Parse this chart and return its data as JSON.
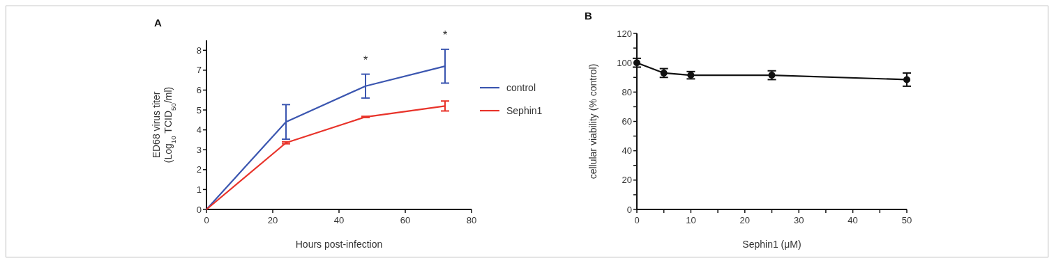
{
  "chart_data": [
    {
      "type": "line",
      "title": "A",
      "xlabel": "Hours post-infection",
      "ylabel": "ED68 virus titer\n(Log$_{10}$ TCID$_{50}$/ml)",
      "x": [
        0,
        24,
        48,
        72
      ],
      "xlim": [
        0,
        80
      ],
      "xticks": [
        0,
        20,
        40,
        60,
        80
      ],
      "ylim": [
        0,
        8.5
      ],
      "yticks": [
        0,
        1,
        2,
        3,
        4,
        5,
        6,
        7,
        8
      ],
      "series": [
        {
          "name": "control",
          "color": "#3b56b0",
          "values": [
            0,
            4.4,
            6.2,
            7.2
          ],
          "errors": [
            null,
            0.87,
            0.6,
            0.85
          ]
        },
        {
          "name": "Sephin1",
          "color": "#e8332a",
          "values": [
            0,
            3.35,
            4.65,
            5.2
          ],
          "errors": [
            null,
            0.05,
            0.03,
            0.25
          ]
        }
      ],
      "annotations": [
        {
          "text": "*",
          "x": 48,
          "y": 6.83
        },
        {
          "text": "*",
          "x": 72,
          "y": 8.08
        }
      ],
      "legend": "right",
      "marker": "none",
      "grid": false
    },
    {
      "type": "line",
      "title": "B",
      "xlabel": "Sephin1 (μM)",
      "ylabel": "cellular viability (% control)",
      "x": [
        0,
        5,
        10,
        25,
        50
      ],
      "xlim": [
        0,
        50
      ],
      "xticks": [
        0,
        {
          "value": 5,
          "label": null
        },
        10,
        {
          "value": 15,
          "label": null
        },
        20,
        {
          "value": 25,
          "label": null
        },
        30,
        {
          "value": 35,
          "label": null
        },
        40,
        {
          "value": 45,
          "label": null
        },
        50
      ],
      "ylim": [
        0,
        120
      ],
      "yticks": [
        0,
        {
          "value": 10,
          "label": null
        },
        20,
        {
          "value": 30,
          "label": null
        },
        40,
        {
          "value": 50,
          "label": null
        },
        60,
        {
          "value": 70,
          "label": null
        },
        80,
        {
          "value": 90,
          "label": null
        },
        100,
        {
          "value": 110,
          "label": null
        },
        120
      ],
      "series": [
        {
          "color": "#111111",
          "values": [
            100,
            93,
            91.5,
            91.5,
            88.5
          ],
          "errors": [
            3,
            3,
            2.5,
            3,
            4.5
          ]
        }
      ],
      "marker": "circle",
      "grid": false
    }
  ]
}
